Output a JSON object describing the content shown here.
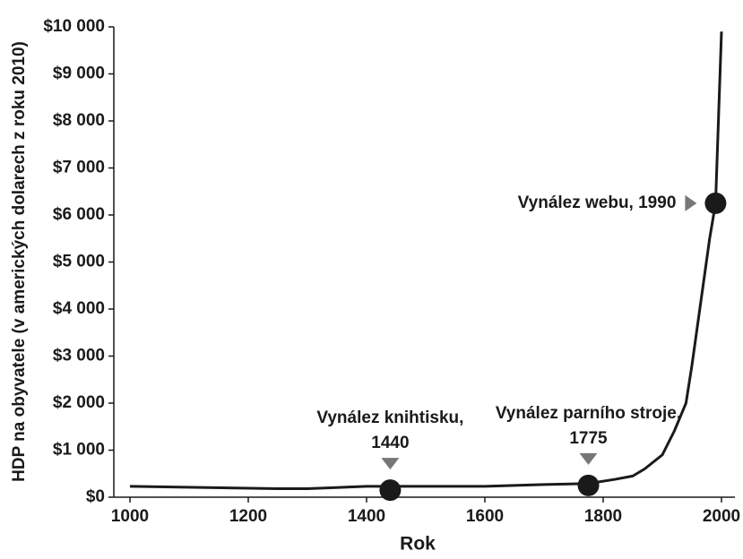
{
  "chart_data": {
    "type": "line",
    "x_label": "Rok",
    "y_label": "HDP na obyvatele (v amerických dolarech z roku 2010)",
    "x": [
      1000,
      1250,
      1300,
      1400,
      1500,
      1600,
      1700,
      1775,
      1820,
      1850,
      1870,
      1900,
      1920,
      1940,
      1950,
      1960,
      1970,
      1980,
      1990,
      2000
    ],
    "values": [
      230,
      180,
      180,
      230,
      230,
      230,
      270,
      290,
      380,
      450,
      600,
      900,
      1400,
      2000,
      2800,
      3700,
      4600,
      5500,
      6250,
      9900
    ],
    "color": "#1a1a1a",
    "xlim": [
      1000,
      2000
    ],
    "ylim": [
      0,
      10000
    ],
    "xticks": [
      1000,
      1200,
      1400,
      1600,
      1800,
      2000
    ],
    "yticks": [
      {
        "value": 0,
        "label": "$0"
      },
      {
        "value": 1000,
        "label": "$1 000"
      },
      {
        "value": 2000,
        "label": "$2 000"
      },
      {
        "value": 3000,
        "label": "$3 000"
      },
      {
        "value": 4000,
        "label": "$4 000"
      },
      {
        "value": 5000,
        "label": "$5 000"
      },
      {
        "value": 6000,
        "label": "$6 000"
      },
      {
        "value": 7000,
        "label": "$7 000"
      },
      {
        "value": 8000,
        "label": "$8 000"
      },
      {
        "value": 9000,
        "label": "$9 000"
      },
      {
        "value": 10000,
        "label": "$10 000"
      }
    ],
    "markers": [
      {
        "x": 1440,
        "y": 150,
        "label": [
          "Vynález knihtisku,",
          "1440"
        ]
      },
      {
        "x": 1775,
        "y": 250,
        "label": [
          "Vynález parního stroje,",
          "1775"
        ]
      },
      {
        "x": 1990,
        "y": 6250,
        "label": [
          "Vynález webu, 1990"
        ]
      }
    ],
    "marker_color": "#1a1a1a",
    "arrow_color": "#777777"
  }
}
